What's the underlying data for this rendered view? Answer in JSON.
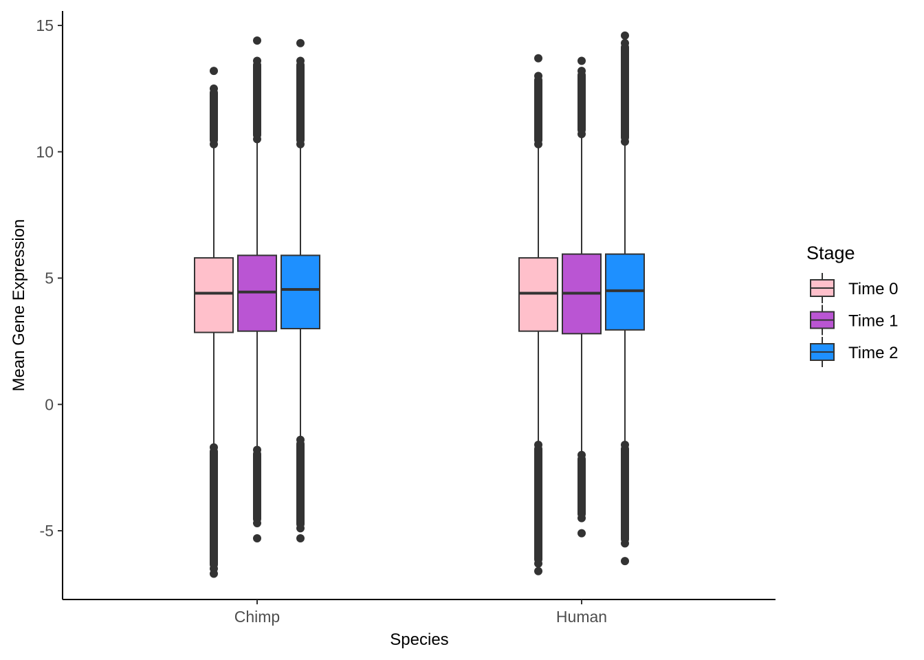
{
  "chart_data": {
    "type": "boxplot",
    "xlabel": "Species",
    "ylabel": "Mean Gene Expression",
    "categories": [
      "Chimp",
      "Human"
    ],
    "ylim": [
      -7.8,
      15.6
    ],
    "yticks": [
      -5,
      0,
      5,
      10,
      15
    ],
    "ytick_labels": [
      "-5",
      "0",
      "5",
      "10",
      "15"
    ],
    "grid": false,
    "legend": {
      "title": "Stage",
      "position": "right",
      "entries": [
        "Time 0",
        "Time 1",
        "Time 2"
      ]
    },
    "colors": [
      "#FFC0CB",
      "#BA55D3",
      "#1E90FF"
    ],
    "outline_color": "#333333",
    "series": [
      {
        "name": "Time 0",
        "boxes": [
          {
            "category": "Chimp",
            "q1": 2.85,
            "median": 4.4,
            "q3": 5.8,
            "whisker_low": -1.6,
            "whisker_high": 10.3,
            "outliers_high": [
              10.3,
              10.6,
              11.0,
              11.5,
              12.0,
              12.5,
              13.2
            ],
            "outliers_low": [
              -1.7,
              -2.2,
              -2.8,
              -3.3,
              -3.8,
              -4.3,
              -4.8,
              -5.3,
              -5.8,
              -6.2,
              -6.5,
              -6.7
            ]
          },
          {
            "category": "Human",
            "q1": 2.9,
            "median": 4.4,
            "q3": 5.8,
            "whisker_low": -1.5,
            "whisker_high": 10.3,
            "outliers_high": [
              10.3,
              10.8,
              11.3,
              11.9,
              12.5,
              13.0,
              13.7
            ],
            "outliers_low": [
              -1.6,
              -2.1,
              -2.7,
              -3.2,
              -3.8,
              -4.3,
              -4.8,
              -5.3,
              -5.8,
              -6.3,
              -6.6
            ]
          }
        ]
      },
      {
        "name": "Time 1",
        "boxes": [
          {
            "category": "Chimp",
            "q1": 2.9,
            "median": 4.45,
            "q3": 5.9,
            "whisker_low": -1.7,
            "whisker_high": 10.5,
            "outliers_high": [
              10.5,
              11.0,
              11.5,
              12.0,
              12.6,
              13.1,
              13.6,
              14.4
            ],
            "outliers_low": [
              -1.8,
              -2.3,
              -2.8,
              -3.3,
              -3.8,
              -4.2,
              -4.7,
              -5.3
            ]
          },
          {
            "category": "Human",
            "q1": 2.8,
            "median": 4.4,
            "q3": 5.95,
            "whisker_low": -1.9,
            "whisker_high": 10.7,
            "outliers_high": [
              10.7,
              11.2,
              11.7,
              12.2,
              12.7,
              13.2,
              13.6
            ],
            "outliers_low": [
              -2.0,
              -2.5,
              -3.0,
              -3.5,
              -4.1,
              -4.5,
              -5.1
            ]
          }
        ]
      },
      {
        "name": "Time 2",
        "boxes": [
          {
            "category": "Chimp",
            "q1": 3.0,
            "median": 4.55,
            "q3": 5.9,
            "whisker_low": -1.4,
            "whisker_high": 10.3,
            "outliers_high": [
              10.3,
              10.8,
              11.3,
              11.8,
              12.2,
              12.6,
              13.2,
              13.6,
              14.3
            ],
            "outliers_low": [
              -1.4,
              -1.9,
              -2.4,
              -2.9,
              -3.4,
              -3.9,
              -4.4,
              -4.9,
              -5.3
            ]
          },
          {
            "category": "Human",
            "q1": 2.95,
            "median": 4.5,
            "q3": 5.95,
            "whisker_low": -1.5,
            "whisker_high": 10.4,
            "outliers_high": [
              10.4,
              10.9,
              11.4,
              11.9,
              12.4,
              12.8,
              13.3,
              14.3,
              14.6
            ],
            "outliers_low": [
              -1.6,
              -2.1,
              -2.6,
              -3.1,
              -3.6,
              -4.1,
              -4.6,
              -5.1,
              -5.5,
              -6.2
            ]
          }
        ]
      }
    ]
  }
}
